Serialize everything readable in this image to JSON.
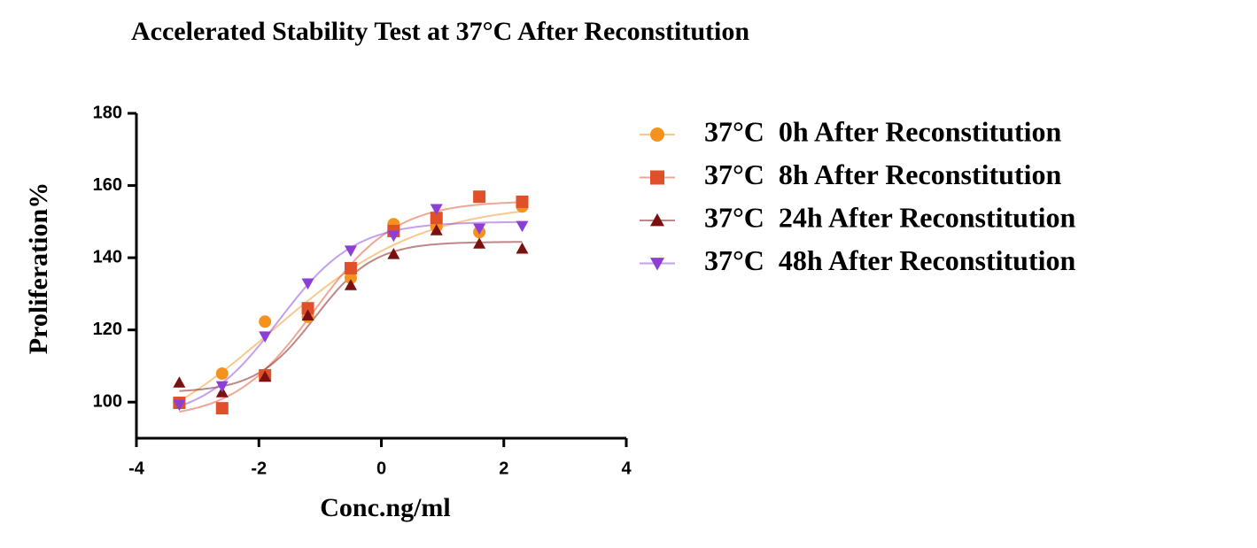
{
  "chart_data": {
    "type": "scatter",
    "title": "Accelerated Stability Test at 37°C After Reconstitution",
    "x_label": "Conc.ng/ml",
    "y_label": "Proliferation%",
    "x": [
      -3.3,
      -2.6,
      -1.9,
      -1.2,
      -0.5,
      0.2,
      0.9,
      1.6,
      2.3
    ],
    "series": [
      {
        "name": "37°C  0h After Reconstitution",
        "color": "#f5921e",
        "marker": "circle",
        "values": [
          99.8,
          107.9,
          122.3,
          123.6,
          134.4,
          149.3,
          148.6,
          147.1,
          154.2
        ]
      },
      {
        "name": "37°C  8h After Reconstitution",
        "color": "#e0502a",
        "marker": "square",
        "values": [
          99.8,
          98.3,
          107.4,
          126.0,
          137.1,
          147.4,
          151.0,
          156.9,
          155.5
        ]
      },
      {
        "name": "37°C  24h After Reconstitution",
        "color": "#7b1010",
        "marker": "triangle-up",
        "values": [
          105.4,
          102.7,
          107.0,
          124.0,
          132.4,
          141.0,
          147.6,
          143.9,
          142.5
        ]
      },
      {
        "name": "37°C  48h After Reconstitution",
        "color": "#8b3fd6",
        "marker": "triangle-down",
        "values": [
          99.3,
          104.4,
          118.2,
          132.9,
          142.0,
          146.1,
          153.5,
          148.1,
          148.8
        ]
      }
    ],
    "xlim": [
      -4,
      4
    ],
    "xticks": [
      -4,
      -2,
      0,
      2,
      4
    ],
    "ylim": [
      90,
      180
    ],
    "yticks": [
      100,
      120,
      140,
      160,
      180
    ],
    "grid": false,
    "legend": "right"
  }
}
